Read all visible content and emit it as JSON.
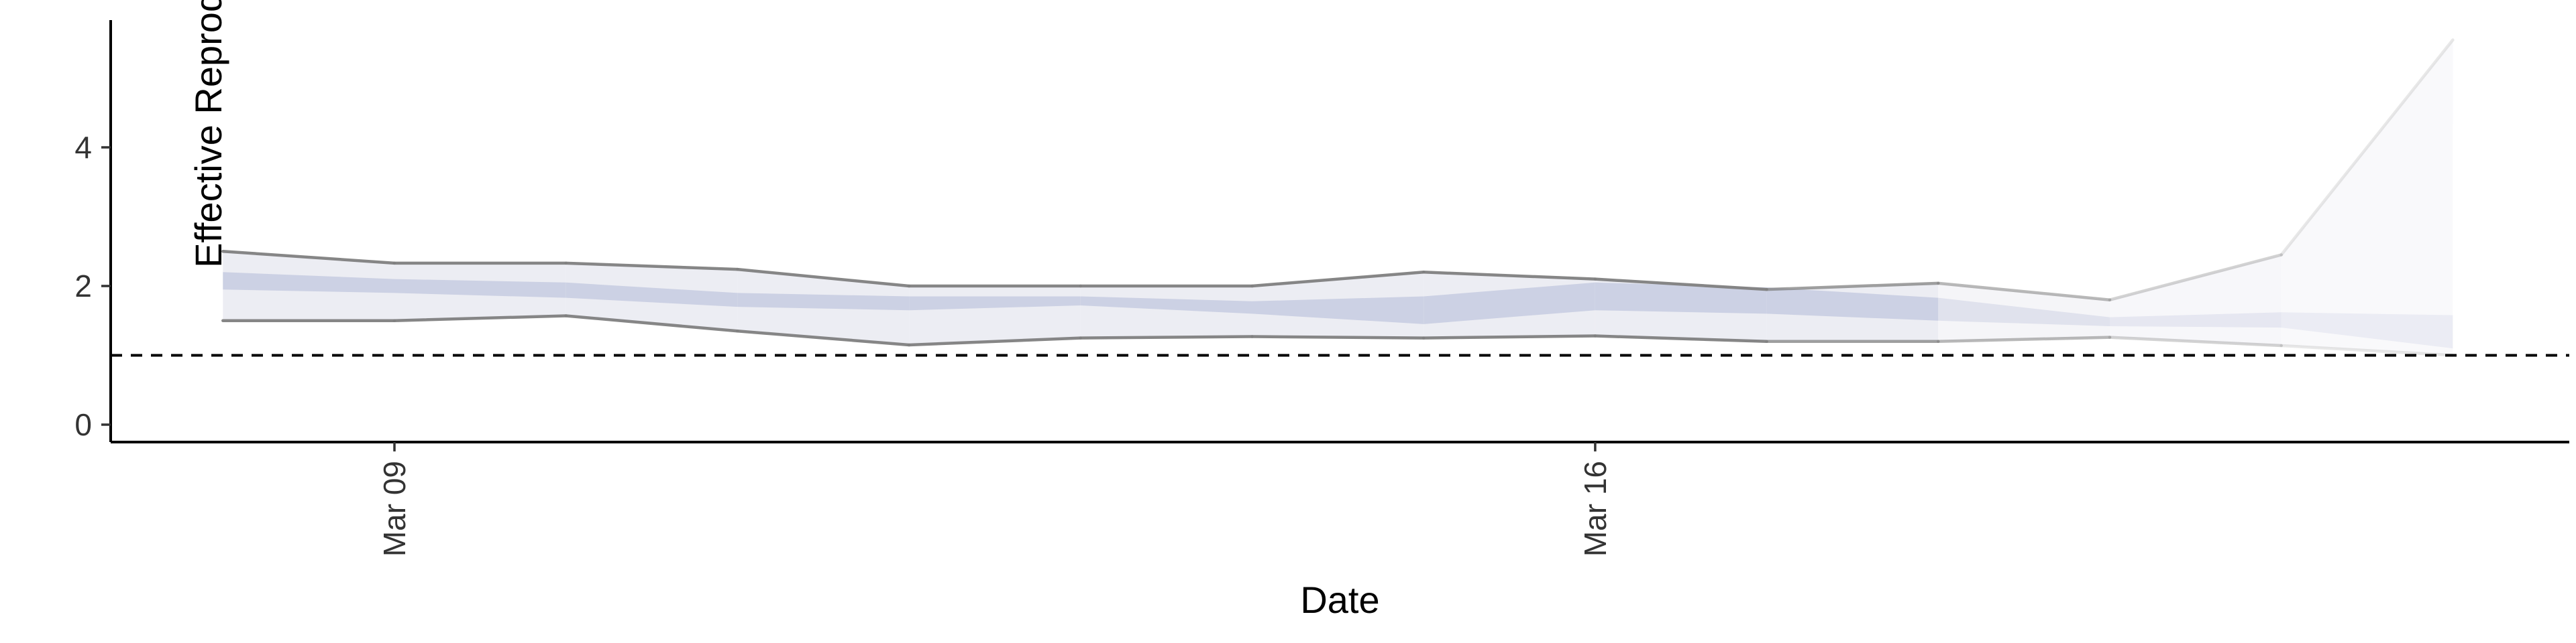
{
  "chart_data": {
    "type": "area",
    "xlabel": "Date",
    "ylabel": "Effective Reproduction no.",
    "x_tick_labels": [
      "Mar 09",
      "Mar 16"
    ],
    "x_tick_dates": [
      "2020-03-09",
      "2020-03-16"
    ],
    "y_ticks": [
      0,
      2,
      4
    ],
    "ylim": [
      -0.25,
      5.9
    ],
    "xlim": [
      "2020-03-06",
      "2020-03-21"
    ],
    "reference_line": {
      "y": 1,
      "style": "dashed"
    },
    "grid": false,
    "legend": "none",
    "series": [
      {
        "dates": [
          "2020-03-08",
          "2020-03-09",
          "2020-03-10",
          "2020-03-11",
          "2020-03-12",
          "2020-03-13",
          "2020-03-14",
          "2020-03-15",
          "2020-03-16",
          "2020-03-17",
          "2020-03-18",
          "2020-03-19",
          "2020-03-20",
          "2020-03-21"
        ],
        "lower_90": [
          1.5,
          1.5,
          1.57,
          1.35,
          1.15,
          1.25,
          1.27,
          1.25,
          1.28,
          1.2,
          1.2,
          1.26,
          1.14,
          1.0
        ],
        "upper_90": [
          2.5,
          2.33,
          2.33,
          2.24,
          2.0,
          2.0,
          2.0,
          2.2,
          2.1,
          1.95,
          2.04,
          1.8,
          2.45,
          5.55
        ],
        "lower_50": [
          1.95,
          1.9,
          1.83,
          1.7,
          1.65,
          1.72,
          1.6,
          1.45,
          1.65,
          1.6,
          1.5,
          1.42,
          1.4,
          1.1
        ],
        "upper_50": [
          2.2,
          2.1,
          2.05,
          1.9,
          1.85,
          1.85,
          1.78,
          1.85,
          2.05,
          1.98,
          1.83,
          1.55,
          1.62,
          1.58
        ]
      }
    ],
    "colors": {
      "band_90_fill": "#ecedf3",
      "band_50_fill": "#c7cbe0",
      "bound_line": "#808080",
      "reference_line": "#000000",
      "axis": "#000000"
    }
  }
}
